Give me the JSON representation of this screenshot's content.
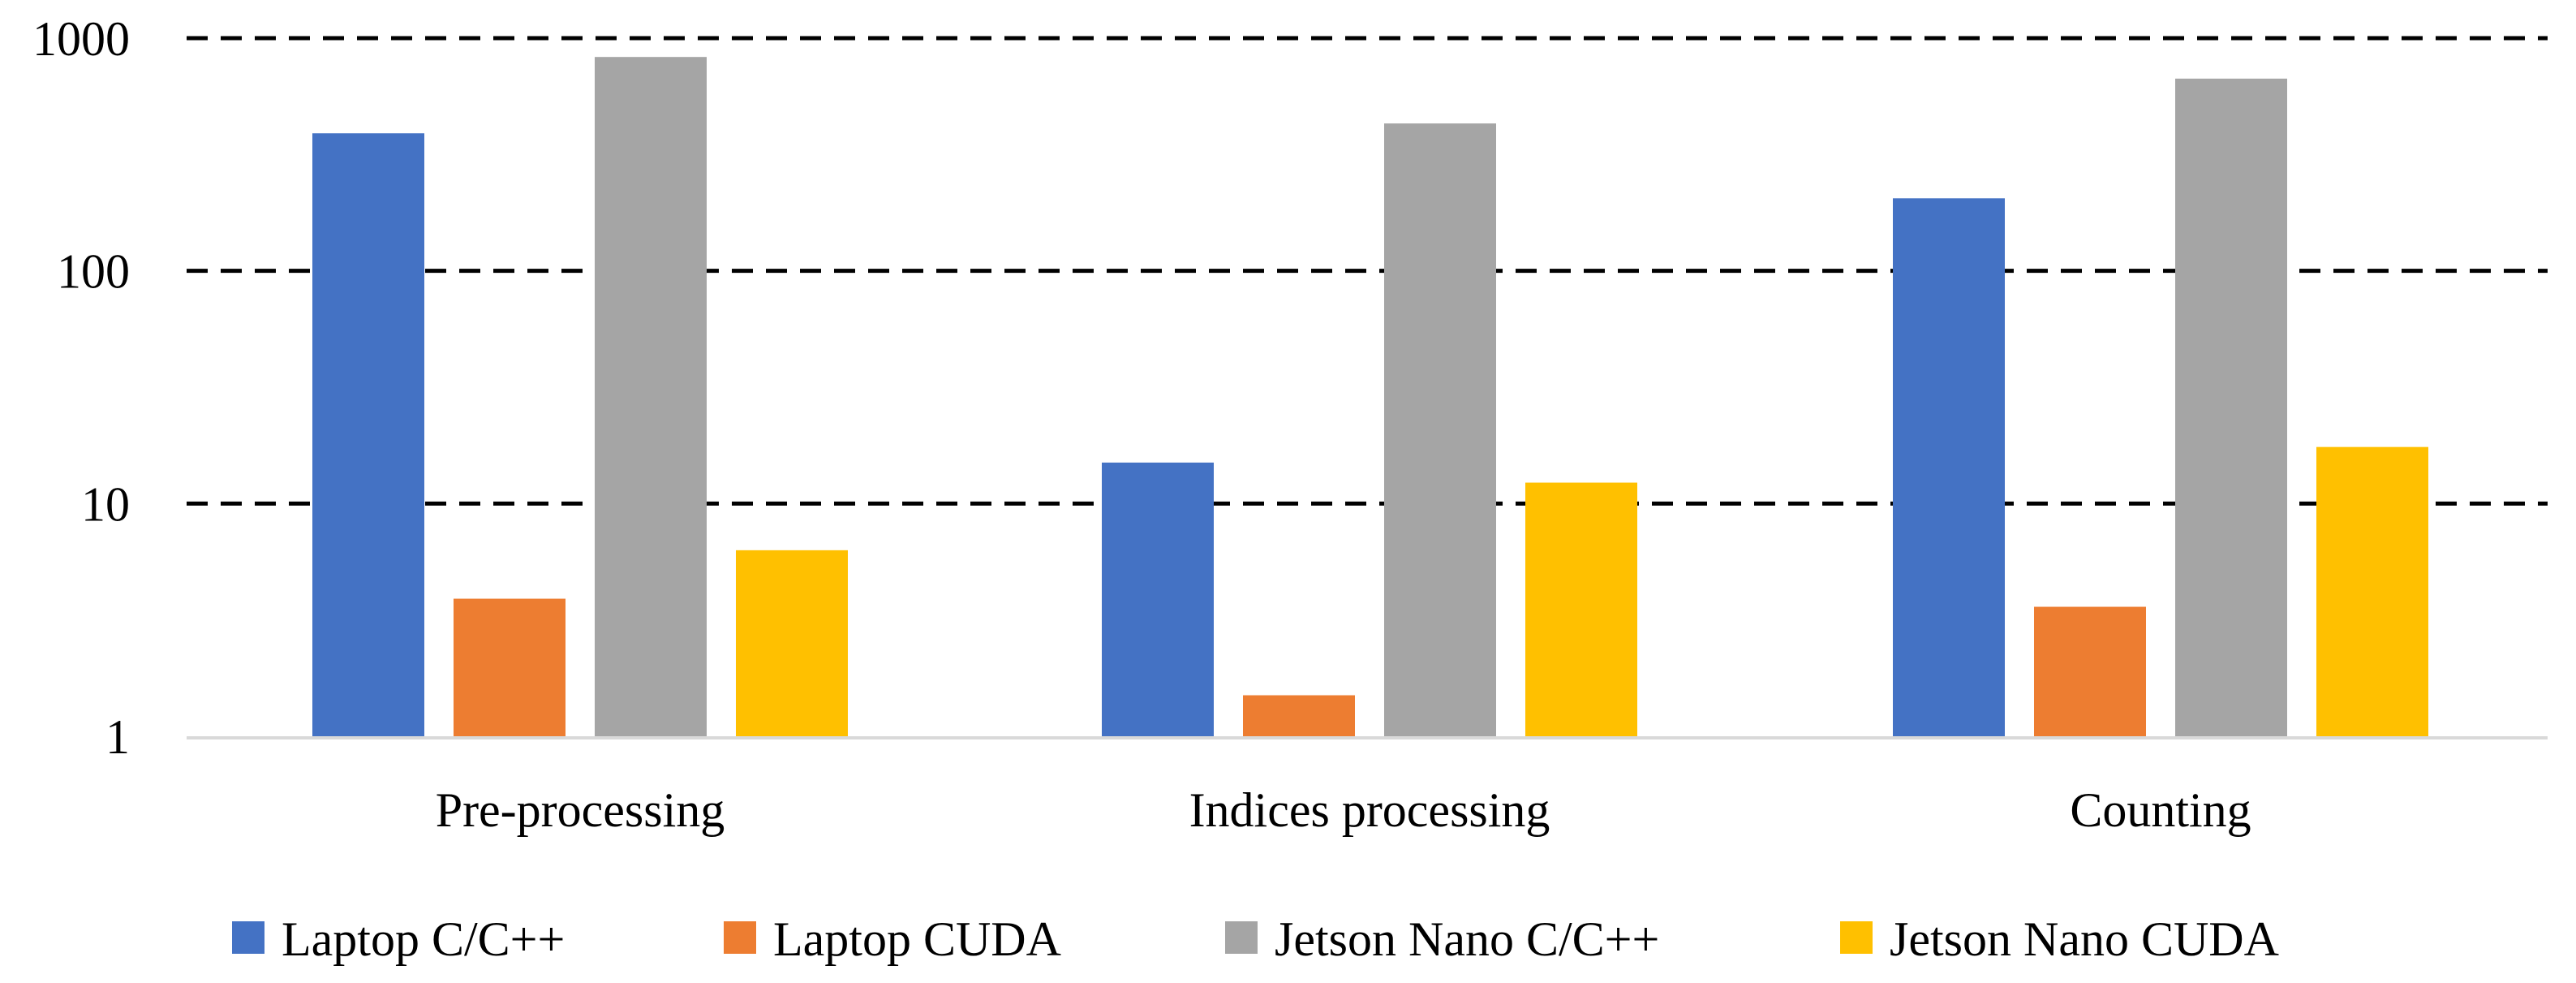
{
  "chart_data": {
    "type": "bar",
    "y_scale": "log",
    "ylim": [
      1,
      1000
    ],
    "y_ticks": [
      "1",
      "10",
      "100",
      "1000"
    ],
    "grid": "dashed horizontal",
    "legend_position": "bottom",
    "categories": [
      "Pre-processing",
      "Indices processing",
      "Counting"
    ],
    "series": [
      {
        "name": "Laptop C/C++",
        "color": "#4472C4",
        "values": [
          390,
          15,
          205
        ]
      },
      {
        "name": "Laptop CUDA",
        "color": "#ED7D31",
        "values": [
          3.9,
          1.5,
          3.6
        ]
      },
      {
        "name": "Jetson Nano C/C++",
        "color": "#A5A5A5",
        "values": [
          830,
          430,
          670
        ]
      },
      {
        "name": "Jetson Nano CUDA",
        "color": "#FFC000",
        "values": [
          6.3,
          12.3,
          17.5
        ]
      }
    ]
  }
}
